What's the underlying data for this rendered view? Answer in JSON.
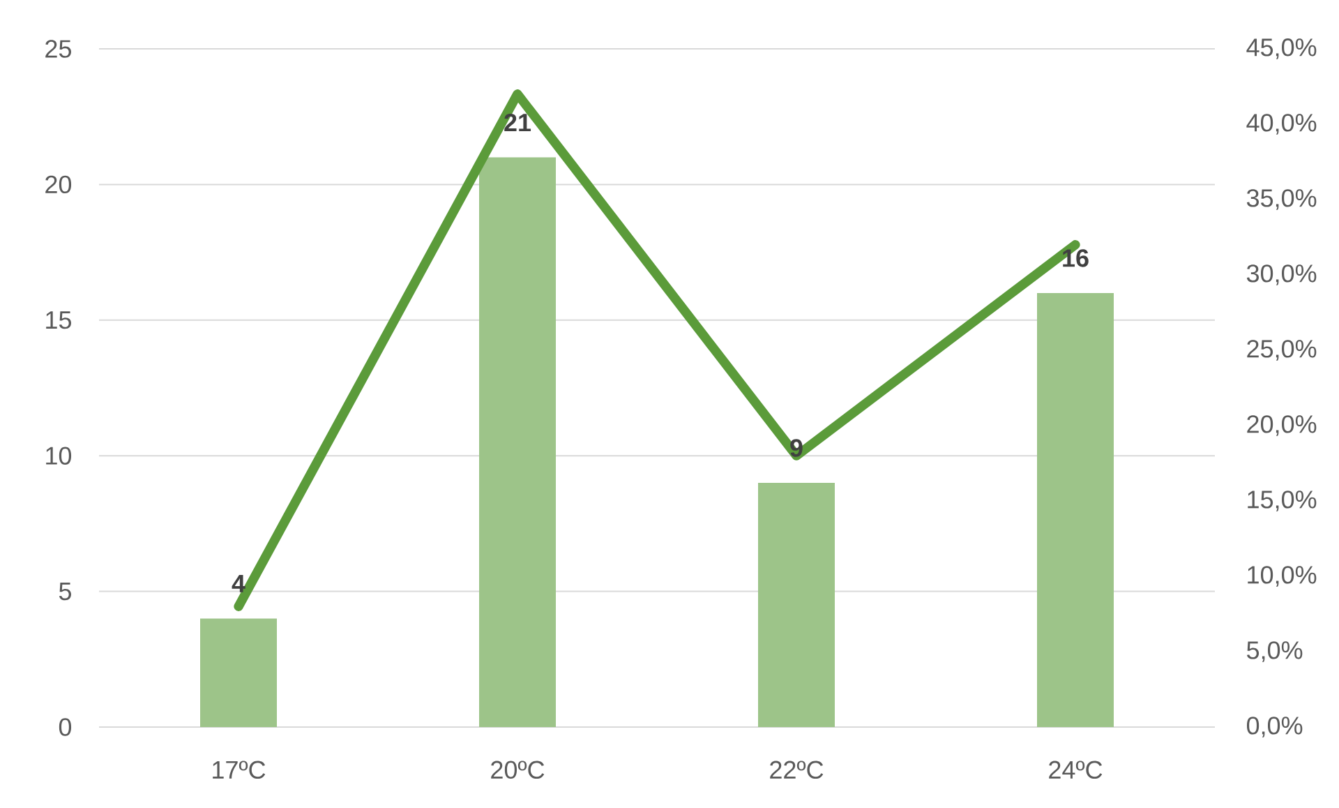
{
  "chart_data": {
    "type": "bar",
    "categories": [
      "17ºC",
      "20ºC",
      "22ºC",
      "24ºC"
    ],
    "series": [
      {
        "color": "#9dc489",
        "values": [
          4,
          21,
          9,
          16
        ],
        "value_labels": [
          "4",
          "21",
          "9",
          "16"
        ]
      },
      {
        "type": "line",
        "axis": "y2",
        "color": "#5b9b3a",
        "values": [
          8,
          42,
          18,
          32
        ]
      }
    ],
    "ylim": [
      0,
      25
    ],
    "yticks": [
      0,
      5,
      10,
      15,
      20,
      25
    ],
    "y2lim": [
      0,
      45
    ],
    "y2ticks": [
      {
        "value": 0,
        "label": "0,0%"
      },
      {
        "value": 5,
        "label": "5,0%"
      },
      {
        "value": 10,
        "label": "10,0%"
      },
      {
        "value": 15,
        "label": "15,0%"
      },
      {
        "value": 20,
        "label": "20,0%"
      },
      {
        "value": 25,
        "label": "25,0%"
      },
      {
        "value": 30,
        "label": "30,0%"
      },
      {
        "value": 35,
        "label": "35,0%"
      },
      {
        "value": 40,
        "label": "40,0%"
      },
      {
        "value": 45,
        "label": "45,0%"
      }
    ],
    "grid": "y"
  }
}
